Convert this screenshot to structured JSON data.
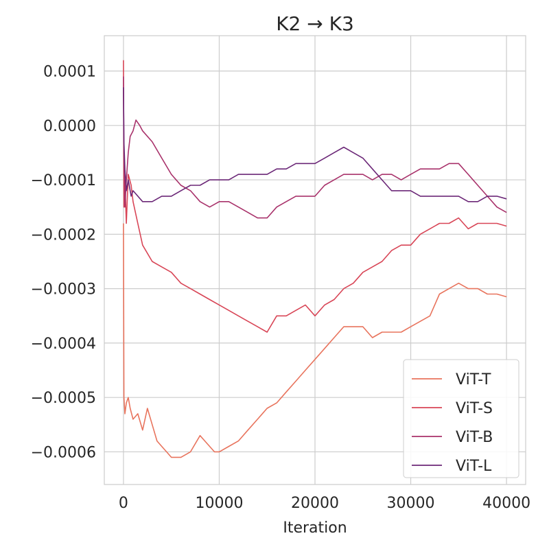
{
  "chart_data": {
    "type": "line",
    "title": "K2 → K3",
    "xlabel": "Iteration",
    "ylabel": "",
    "xlim": [
      -2000,
      42000
    ],
    "ylim": [
      -0.00066,
      0.000165
    ],
    "xticks": [
      0,
      10000,
      20000,
      30000,
      40000
    ],
    "xtick_labels": [
      "0",
      "10000",
      "20000",
      "30000",
      "40000"
    ],
    "yticks": [
      0.0001,
      0.0,
      -0.0001,
      -0.0002,
      -0.0003,
      -0.0004,
      -0.0005,
      -0.0006
    ],
    "ytick_labels": [
      "0.0001",
      "0.0000",
      "−0.0001",
      "−0.0002",
      "−0.0003",
      "−0.0004",
      "−0.0005",
      "−0.0006"
    ],
    "grid": true,
    "legend_position": "lower-right",
    "series": [
      {
        "name": "ViT-T",
        "color": "#e8735c",
        "x": [
          0,
          50,
          150,
          300,
          500,
          700,
          1000,
          1500,
          2000,
          2500,
          3000,
          3500,
          4000,
          4500,
          5000,
          5500,
          6000,
          7000,
          8000,
          8500,
          9000,
          9500,
          10000,
          11000,
          12000,
          13000,
          14000,
          15000,
          16000,
          17000,
          18000,
          19000,
          20000,
          21000,
          22000,
          23000,
          24000,
          25000,
          26000,
          27000,
          28000,
          29000,
          30000,
          31000,
          32000,
          33000,
          34000,
          35000,
          36000,
          37000,
          38000,
          39000,
          40000
        ],
        "y": [
          -0.00018,
          -0.0005,
          -0.00053,
          -0.00051,
          -0.0005,
          -0.00052,
          -0.00054,
          -0.00053,
          -0.00056,
          -0.00052,
          -0.00055,
          -0.00058,
          -0.00059,
          -0.0006,
          -0.00061,
          -0.00061,
          -0.00061,
          -0.0006,
          -0.00057,
          -0.00058,
          -0.00059,
          -0.0006,
          -0.0006,
          -0.00059,
          -0.00058,
          -0.00056,
          -0.00054,
          -0.00052,
          -0.00051,
          -0.00049,
          -0.00047,
          -0.00045,
          -0.00043,
          -0.00041,
          -0.00039,
          -0.00037,
          -0.00037,
          -0.00037,
          -0.00039,
          -0.00038,
          -0.00038,
          -0.00038,
          -0.00037,
          -0.00036,
          -0.00035,
          -0.00031,
          -0.0003,
          -0.00029,
          -0.0003,
          -0.0003,
          -0.00031,
          -0.00031,
          -0.000315
        ]
      },
      {
        "name": "ViT-S",
        "color": "#d84556",
        "x": [
          0,
          50,
          150,
          300,
          500,
          800,
          1000,
          1500,
          2000,
          3000,
          4000,
          5000,
          6000,
          7000,
          8000,
          9000,
          10000,
          11000,
          12000,
          13000,
          14000,
          15000,
          16000,
          17000,
          18000,
          19000,
          20000,
          21000,
          22000,
          23000,
          24000,
          25000,
          26000,
          27000,
          28000,
          29000,
          30000,
          31000,
          32000,
          33000,
          34000,
          35000,
          36000,
          37000,
          38000,
          39000,
          40000
        ],
        "y": [
          0.00012,
          -0.00015,
          -0.0001,
          -0.00018,
          -9e-05,
          -0.00011,
          -0.00014,
          -0.00018,
          -0.00022,
          -0.00025,
          -0.00026,
          -0.00027,
          -0.00029,
          -0.0003,
          -0.00031,
          -0.00032,
          -0.00033,
          -0.00034,
          -0.00035,
          -0.00036,
          -0.00037,
          -0.00038,
          -0.00035,
          -0.00035,
          -0.00034,
          -0.00033,
          -0.00035,
          -0.00033,
          -0.00032,
          -0.0003,
          -0.00029,
          -0.00027,
          -0.00026,
          -0.00025,
          -0.00023,
          -0.00022,
          -0.00022,
          -0.0002,
          -0.00019,
          -0.00018,
          -0.00018,
          -0.00017,
          -0.00019,
          -0.00018,
          -0.00018,
          -0.00018,
          -0.000185
        ]
      },
      {
        "name": "ViT-B",
        "color": "#a8316a",
        "x": [
          0,
          50,
          150,
          300,
          500,
          700,
          1000,
          1300,
          1700,
          2000,
          3000,
          4000,
          5000,
          6000,
          7000,
          8000,
          9000,
          10000,
          11000,
          12000,
          13000,
          14000,
          15000,
          16000,
          17000,
          18000,
          19000,
          20000,
          21000,
          22000,
          23000,
          24000,
          25000,
          26000,
          27000,
          28000,
          29000,
          30000,
          31000,
          32000,
          33000,
          34000,
          35000,
          36000,
          37000,
          38000,
          39000,
          40000
        ],
        "y": [
          9e-05,
          -5e-05,
          -0.00015,
          -0.0001,
          -5e-05,
          -2e-05,
          -1e-05,
          1e-05,
          0.0,
          -1e-05,
          -3e-05,
          -6e-05,
          -9e-05,
          -0.00011,
          -0.00012,
          -0.00014,
          -0.00015,
          -0.00014,
          -0.00014,
          -0.00015,
          -0.00016,
          -0.00017,
          -0.00017,
          -0.00015,
          -0.00014,
          -0.00013,
          -0.00013,
          -0.00013,
          -0.00011,
          -0.0001,
          -9e-05,
          -9e-05,
          -9e-05,
          -0.0001,
          -9e-05,
          -9e-05,
          -0.0001,
          -9e-05,
          -8e-05,
          -8e-05,
          -8e-05,
          -7e-05,
          -7e-05,
          -9e-05,
          -0.00011,
          -0.00013,
          -0.00015,
          -0.00016
        ]
      },
      {
        "name": "ViT-L",
        "color": "#6b2777",
        "x": [
          0,
          50,
          150,
          300,
          500,
          800,
          1000,
          2000,
          3000,
          4000,
          5000,
          6000,
          7000,
          8000,
          9000,
          10000,
          11000,
          12000,
          13000,
          14000,
          15000,
          16000,
          17000,
          18000,
          19000,
          20000,
          21000,
          22000,
          23000,
          24000,
          25000,
          26000,
          27000,
          28000,
          29000,
          30000,
          31000,
          32000,
          33000,
          34000,
          35000,
          36000,
          37000,
          38000,
          39000,
          40000
        ],
        "y": [
          7e-05,
          -3e-05,
          -8e-05,
          -0.00012,
          -0.0001,
          -0.00013,
          -0.00012,
          -0.00014,
          -0.00014,
          -0.00013,
          -0.00013,
          -0.00012,
          -0.00011,
          -0.00011,
          -0.0001,
          -0.0001,
          -0.0001,
          -9e-05,
          -9e-05,
          -9e-05,
          -9e-05,
          -8e-05,
          -8e-05,
          -7e-05,
          -7e-05,
          -7e-05,
          -6e-05,
          -5e-05,
          -4e-05,
          -5e-05,
          -6e-05,
          -8e-05,
          -0.0001,
          -0.00012,
          -0.00012,
          -0.00012,
          -0.00013,
          -0.00013,
          -0.00013,
          -0.00013,
          -0.00013,
          -0.00014,
          -0.00014,
          -0.00013,
          -0.00013,
          -0.000135
        ]
      }
    ]
  }
}
